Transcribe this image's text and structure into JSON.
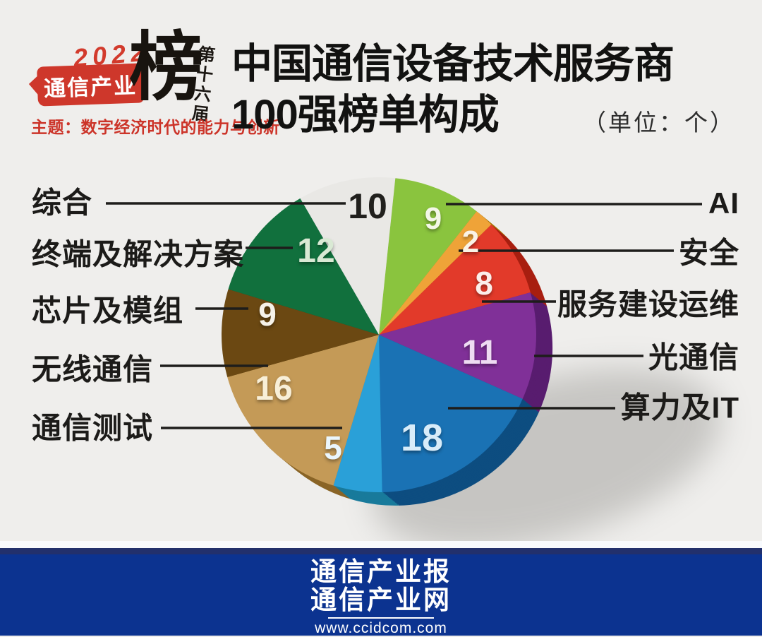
{
  "page": {
    "background": "#efeeec"
  },
  "logo": {
    "year": "2022",
    "brand": "通信产业",
    "mark": "榜",
    "edition": "第十六届",
    "theme": "主题：数字经济时代的能力与创新",
    "accent_red": "#ce372b"
  },
  "header": {
    "title_line1": "中国通信设备技术服务商",
    "title_line2": "100强榜单构成",
    "unit_note": "（单位：个）"
  },
  "chart_data": {
    "type": "pie",
    "title": "中国通信设备技术服务商100强榜单构成",
    "unit": "个",
    "total": 100,
    "legend_position": "callout-labels",
    "start_angle_deg_cw_from_north": 6,
    "slices": [
      {
        "label": "AI",
        "value": 9,
        "color": "#8ac43e",
        "side_color": "#61901d",
        "number_color": "#f3f7e8"
      },
      {
        "label": "安全",
        "value": 2,
        "color": "#efa338",
        "side_color": "#a9750a",
        "number_color": "#faf3e6"
      },
      {
        "label": "服务建设运维",
        "value": 8,
        "color": "#e23a2a",
        "side_color": "#a81f10",
        "number_color": "#fbeeea"
      },
      {
        "label": "光通信",
        "value": 11,
        "color": "#803098",
        "side_color": "#581c6f",
        "number_color": "#eedcf2"
      },
      {
        "label": "算力及IT",
        "value": 18,
        "color": "#1a72b4",
        "side_color": "#0d4d80",
        "number_color": "#d8ecf9"
      },
      {
        "label": "通信测试",
        "value": 5,
        "color": "#2aa0d8",
        "side_color": "#187a9b",
        "number_color": "#eaf6fd"
      },
      {
        "label": "无线通信",
        "value": 16,
        "color": "#c49a57",
        "side_color": "#8a6527",
        "number_color": "#f8efd8"
      },
      {
        "label": "芯片及模组",
        "value": 9,
        "color": "#6b4812",
        "side_color": "#3b2905",
        "number_color": "#f6f2e9"
      },
      {
        "label": "终端及解决方案",
        "value": 12,
        "color": "#11703d",
        "side_color": "#0a4a28",
        "number_color": "#d9e9d4"
      },
      {
        "label": "综合",
        "value": 10,
        "color": "#e9e8e5",
        "side_color": "#b5b3ae",
        "number_color": "#21201d"
      }
    ]
  },
  "footer": {
    "line1": "通信产业报",
    "line2": "通信产业网",
    "url": "www.ccidcom.com",
    "background": "#0c3390"
  }
}
